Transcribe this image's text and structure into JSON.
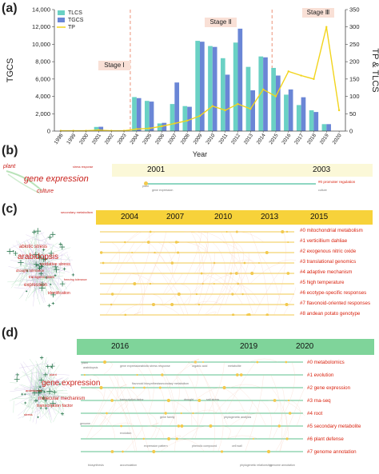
{
  "panels": {
    "a": "(a)",
    "b": "(b)",
    "c": "(c)",
    "d": "(d)"
  },
  "colors": {
    "tlcs": "#6ad1c4",
    "tgcs": "#6a86d6",
    "tp": "#f2d41c",
    "stage_line": "#e8866a",
    "stage_box": "#f9e0d6",
    "band_b": "#fbf8d8",
    "band_c": "#f7d23a",
    "band_d": "#7fd49a",
    "cluster_red": "#d9230f"
  },
  "chart_data": {
    "type": "bar",
    "title": "",
    "xlabel": "Year",
    "ylabel": "TGCS",
    "y2label": "TP & TLCS",
    "ylim": [
      0,
      14000
    ],
    "y2lim": [
      0,
      350
    ],
    "yticks": [
      "0",
      "2,000",
      "4,000",
      "6,000",
      "8,000",
      "10,000",
      "12,000",
      "14,000"
    ],
    "y2ticks": [
      "0",
      "50",
      "100",
      "150",
      "200",
      "250",
      "300",
      "350"
    ],
    "categories": [
      "1998",
      "1999",
      "2000",
      "2001",
      "2002",
      "2003",
      "2004",
      "2005",
      "2006",
      "2007",
      "2008",
      "2009",
      "2010",
      "2011",
      "2012",
      "2013",
      "2014",
      "2015",
      "2016",
      "2017",
      "2018",
      "2019",
      "2020"
    ],
    "series": [
      {
        "name": "TLCS",
        "axis": "right",
        "kind": "bar",
        "values": [
          0,
          0,
          0,
          12,
          0,
          0,
          98,
          87,
          22,
          78,
          72,
          260,
          245,
          210,
          255,
          185,
          215,
          182,
          105,
          75,
          60,
          20,
          0
        ]
      },
      {
        "name": "TGCS",
        "axis": "left",
        "kind": "bar",
        "values": [
          0,
          0,
          100,
          500,
          0,
          0,
          3800,
          3400,
          950,
          5600,
          2800,
          10300,
          9700,
          6500,
          11800,
          4700,
          8500,
          6400,
          4800,
          3900,
          2200,
          800,
          0
        ]
      },
      {
        "name": "TP",
        "axis": "right",
        "kind": "line",
        "values": [
          1,
          1,
          1,
          3,
          1,
          1,
          6,
          8,
          14,
          22,
          30,
          44,
          72,
          60,
          78,
          64,
          120,
          100,
          172,
          160,
          150,
          300,
          60
        ]
      }
    ],
    "stages": [
      {
        "label": "Stage Ⅰ",
        "start_year": 2003.5
      },
      {
        "label": "Stage Ⅱ",
        "start_year": 2014.7
      },
      {
        "label": "Stage Ⅲ",
        "start_year": 2020
      }
    ],
    "legend": "top-left",
    "grid": false
  },
  "panel_b": {
    "years": [
      "2001",
      "2003"
    ],
    "network_labels": [
      "plant",
      "gene expression",
      "culture",
      "stress response"
    ],
    "clusters": [
      "#0 promoter regulation"
    ],
    "terms": [
      "plant",
      "gene expression",
      "culture"
    ]
  },
  "panel_c": {
    "years": [
      "2004",
      "2007",
      "2010",
      "2013",
      "2015"
    ],
    "network_labels": [
      "abiotic stress",
      "arabidopsis",
      "oxidative stress",
      "drought tolerance",
      "transgenic plant",
      "expression",
      "identification",
      "freezing tolerance",
      "secondary metabolism"
    ],
    "clusters": [
      "#0 mitochondrial metabolism",
      "#1 verticillium dahliae",
      "#2 exogenous nitric oxide",
      "#3 translational genomics",
      "#4 adaptive mechanism",
      "#5 high temperature",
      "#6 ecotype-specific responses",
      "#7 flavonoid-oriented responses",
      "#8 andean potato genotype"
    ]
  },
  "panel_d": {
    "years": [
      "2016",
      "2019",
      "2020"
    ],
    "network_labels": [
      "gene expression",
      "arabidopsis",
      "molecular mechanism",
      "transcription factor",
      "plant",
      "stress"
    ],
    "clusters": [
      "#0 metabolomics",
      "#1 evolution",
      "#2 gene expression",
      "#3 rna-seq",
      "#4 root",
      "#5 secondary metabolite",
      "#6 plant defense",
      "#7 genome annotation"
    ],
    "terms": [
      "plant",
      "arabidopsis",
      "gene expression",
      "abiotic stress response",
      "organic acid",
      "metabolite",
      "flavonoid biosynthesis",
      "secondary metabolism",
      "transcription factor",
      "drought",
      "salt stress",
      "gene family",
      "phylogenetic analysis",
      "genome",
      "evolution",
      "expression pattern",
      "phenolic compound",
      "cell wall",
      "biosynthesis",
      "accumulation",
      "phylogenetic relationship",
      "genome annotation"
    ]
  }
}
